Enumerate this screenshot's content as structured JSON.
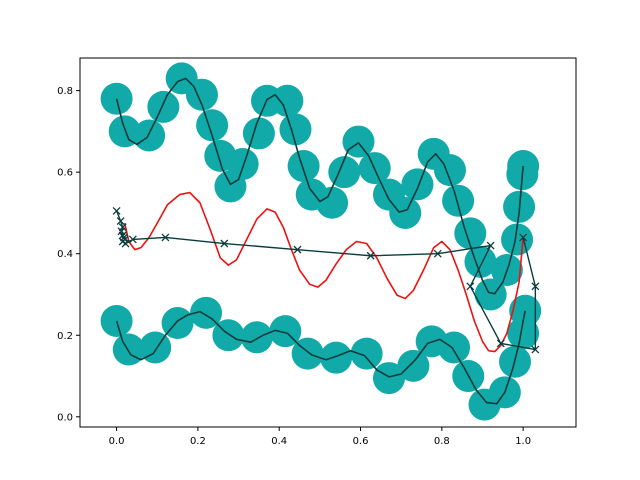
{
  "chart_data": {
    "type": "scatter",
    "title": "",
    "xlabel": "",
    "ylabel": "",
    "xlim": [
      -0.09,
      1.13
    ],
    "ylim": [
      -0.025,
      0.88
    ],
    "grid": false,
    "legend": "none",
    "x_ticks": [
      {
        "value": 0.0,
        "label": "0.0"
      },
      {
        "value": 0.2,
        "label": "0.2"
      },
      {
        "value": 0.4,
        "label": "0.4"
      },
      {
        "value": 0.6,
        "label": "0.6"
      },
      {
        "value": 0.8,
        "label": "0.8"
      },
      {
        "value": 1.0,
        "label": "1.0"
      }
    ],
    "y_ticks": [
      {
        "value": 0.0,
        "label": "0.0"
      },
      {
        "value": 0.2,
        "label": "0.2"
      },
      {
        "value": 0.4,
        "label": "0.4"
      },
      {
        "value": 0.6,
        "label": "0.6"
      },
      {
        "value": 0.8,
        "label": "0.8"
      }
    ],
    "colors": {
      "marker": "#12a9a9",
      "line": "#0b3c3c",
      "red": "#ee1111",
      "axis": "#000000"
    },
    "series": [
      {
        "kind": "markers+line",
        "points": [
          [
            0.0,
            0.78
          ],
          [
            0.02,
            0.7
          ],
          [
            0.08,
            0.69
          ],
          [
            0.115,
            0.76
          ],
          [
            0.16,
            0.83
          ],
          [
            0.21,
            0.79
          ],
          [
            0.235,
            0.715
          ],
          [
            0.255,
            0.64
          ],
          [
            0.28,
            0.565
          ],
          [
            0.31,
            0.62
          ],
          [
            0.35,
            0.695
          ],
          [
            0.37,
            0.775
          ],
          [
            0.42,
            0.775
          ],
          [
            0.44,
            0.705
          ],
          [
            0.46,
            0.615
          ],
          [
            0.48,
            0.545
          ],
          [
            0.53,
            0.525
          ],
          [
            0.56,
            0.6
          ],
          [
            0.595,
            0.675
          ],
          [
            0.635,
            0.61
          ],
          [
            0.67,
            0.545
          ],
          [
            0.71,
            0.5
          ],
          [
            0.74,
            0.57
          ],
          [
            0.78,
            0.645
          ],
          [
            0.82,
            0.605
          ],
          [
            0.84,
            0.53
          ],
          [
            0.87,
            0.45
          ],
          [
            0.895,
            0.38
          ],
          [
            0.92,
            0.3
          ],
          [
            0.96,
            0.36
          ],
          [
            0.985,
            0.435
          ],
          [
            0.99,
            0.515
          ],
          [
            0.998,
            0.595
          ],
          [
            1.0,
            0.615
          ]
        ],
        "curve": [
          [
            0.0,
            0.78
          ],
          [
            0.015,
            0.72
          ],
          [
            0.03,
            0.68
          ],
          [
            0.05,
            0.668
          ],
          [
            0.075,
            0.685
          ],
          [
            0.1,
            0.735
          ],
          [
            0.125,
            0.79
          ],
          [
            0.15,
            0.822
          ],
          [
            0.17,
            0.83
          ],
          [
            0.19,
            0.81
          ],
          [
            0.21,
            0.765
          ],
          [
            0.235,
            0.69
          ],
          [
            0.26,
            0.608
          ],
          [
            0.28,
            0.57
          ],
          [
            0.3,
            0.582
          ],
          [
            0.32,
            0.64
          ],
          [
            0.345,
            0.72
          ],
          [
            0.37,
            0.778
          ],
          [
            0.39,
            0.79
          ],
          [
            0.41,
            0.765
          ],
          [
            0.43,
            0.705
          ],
          [
            0.45,
            0.635
          ],
          [
            0.475,
            0.56
          ],
          [
            0.5,
            0.528
          ],
          [
            0.52,
            0.54
          ],
          [
            0.545,
            0.595
          ],
          [
            0.57,
            0.655
          ],
          [
            0.595,
            0.672
          ],
          [
            0.62,
            0.64
          ],
          [
            0.645,
            0.585
          ],
          [
            0.67,
            0.533
          ],
          [
            0.695,
            0.502
          ],
          [
            0.715,
            0.508
          ],
          [
            0.74,
            0.56
          ],
          [
            0.765,
            0.625
          ],
          [
            0.785,
            0.645
          ],
          [
            0.805,
            0.62
          ],
          [
            0.83,
            0.555
          ],
          [
            0.855,
            0.465
          ],
          [
            0.88,
            0.39
          ],
          [
            0.9,
            0.335
          ],
          [
            0.915,
            0.305
          ],
          [
            0.93,
            0.302
          ],
          [
            0.95,
            0.33
          ],
          [
            0.965,
            0.372
          ],
          [
            0.98,
            0.43
          ],
          [
            0.99,
            0.5
          ],
          [
            1.0,
            0.615
          ]
        ]
      },
      {
        "kind": "markers+line",
        "points": [
          [
            0.0,
            0.235
          ],
          [
            0.03,
            0.165
          ],
          [
            0.095,
            0.17
          ],
          [
            0.15,
            0.23
          ],
          [
            0.22,
            0.255
          ],
          [
            0.275,
            0.2
          ],
          [
            0.345,
            0.195
          ],
          [
            0.415,
            0.21
          ],
          [
            0.47,
            0.155
          ],
          [
            0.54,
            0.145
          ],
          [
            0.615,
            0.155
          ],
          [
            0.67,
            0.095
          ],
          [
            0.73,
            0.125
          ],
          [
            0.775,
            0.185
          ],
          [
            0.83,
            0.17
          ],
          [
            0.865,
            0.1
          ],
          [
            0.905,
            0.03
          ],
          [
            0.955,
            0.06
          ],
          [
            0.98,
            0.135
          ],
          [
            1.0,
            0.205
          ],
          [
            1.005,
            0.26
          ]
        ],
        "curve": [
          [
            0.0,
            0.235
          ],
          [
            0.015,
            0.185
          ],
          [
            0.035,
            0.152
          ],
          [
            0.06,
            0.14
          ],
          [
            0.09,
            0.155
          ],
          [
            0.12,
            0.2
          ],
          [
            0.15,
            0.235
          ],
          [
            0.175,
            0.25
          ],
          [
            0.205,
            0.258
          ],
          [
            0.235,
            0.24
          ],
          [
            0.265,
            0.21
          ],
          [
            0.295,
            0.19
          ],
          [
            0.33,
            0.183
          ],
          [
            0.36,
            0.2
          ],
          [
            0.39,
            0.212
          ],
          [
            0.42,
            0.205
          ],
          [
            0.45,
            0.175
          ],
          [
            0.48,
            0.152
          ],
          [
            0.515,
            0.14
          ],
          [
            0.545,
            0.15
          ],
          [
            0.575,
            0.162
          ],
          [
            0.61,
            0.15
          ],
          [
            0.64,
            0.115
          ],
          [
            0.67,
            0.098
          ],
          [
            0.7,
            0.105
          ],
          [
            0.735,
            0.14
          ],
          [
            0.765,
            0.18
          ],
          [
            0.795,
            0.19
          ],
          [
            0.825,
            0.17
          ],
          [
            0.855,
            0.12
          ],
          [
            0.885,
            0.065
          ],
          [
            0.91,
            0.035
          ],
          [
            0.935,
            0.032
          ],
          [
            0.955,
            0.06
          ],
          [
            0.975,
            0.12
          ],
          [
            0.99,
            0.18
          ],
          [
            1.0,
            0.235
          ],
          [
            1.005,
            0.26
          ]
        ]
      },
      {
        "kind": "line",
        "color": "red",
        "points": [
          [
            0.02,
            0.475
          ],
          [
            0.03,
            0.43
          ],
          [
            0.045,
            0.41
          ],
          [
            0.06,
            0.415
          ],
          [
            0.08,
            0.44
          ],
          [
            0.1,
            0.475
          ],
          [
            0.125,
            0.52
          ],
          [
            0.155,
            0.545
          ],
          [
            0.18,
            0.55
          ],
          [
            0.205,
            0.525
          ],
          [
            0.23,
            0.46
          ],
          [
            0.255,
            0.39
          ],
          [
            0.275,
            0.372
          ],
          [
            0.295,
            0.385
          ],
          [
            0.32,
            0.435
          ],
          [
            0.345,
            0.485
          ],
          [
            0.37,
            0.51
          ],
          [
            0.39,
            0.502
          ],
          [
            0.41,
            0.465
          ],
          [
            0.43,
            0.41
          ],
          [
            0.45,
            0.36
          ],
          [
            0.475,
            0.325
          ],
          [
            0.495,
            0.318
          ],
          [
            0.515,
            0.335
          ],
          [
            0.54,
            0.375
          ],
          [
            0.565,
            0.41
          ],
          [
            0.59,
            0.43
          ],
          [
            0.615,
            0.425
          ],
          [
            0.64,
            0.39
          ],
          [
            0.665,
            0.34
          ],
          [
            0.69,
            0.298
          ],
          [
            0.71,
            0.29
          ],
          [
            0.73,
            0.31
          ],
          [
            0.755,
            0.36
          ],
          [
            0.78,
            0.415
          ],
          [
            0.8,
            0.43
          ],
          [
            0.82,
            0.41
          ],
          [
            0.84,
            0.36
          ],
          [
            0.86,
            0.3
          ],
          [
            0.88,
            0.235
          ],
          [
            0.9,
            0.185
          ],
          [
            0.915,
            0.162
          ],
          [
            0.93,
            0.16
          ],
          [
            0.945,
            0.175
          ],
          [
            0.96,
            0.205
          ],
          [
            0.975,
            0.26
          ],
          [
            0.99,
            0.33
          ],
          [
            1.0,
            0.44
          ]
        ]
      },
      {
        "kind": "x-markers+line",
        "points": [
          [
            0.0,
            0.505
          ],
          [
            0.01,
            0.48
          ],
          [
            0.015,
            0.465
          ],
          [
            0.012,
            0.455
          ],
          [
            0.015,
            0.445
          ],
          [
            0.018,
            0.44
          ],
          [
            0.02,
            0.435
          ],
          [
            0.015,
            0.43
          ],
          [
            0.022,
            0.425
          ],
          [
            0.04,
            0.435
          ],
          [
            0.12,
            0.44
          ],
          [
            0.265,
            0.425
          ],
          [
            0.445,
            0.41
          ],
          [
            0.625,
            0.395
          ],
          [
            0.79,
            0.4
          ],
          [
            0.92,
            0.42
          ],
          [
            0.87,
            0.32
          ],
          [
            0.945,
            0.18
          ],
          [
            1.03,
            0.165
          ],
          [
            1.03,
            0.32
          ],
          [
            1.0,
            0.44
          ]
        ]
      }
    ]
  }
}
